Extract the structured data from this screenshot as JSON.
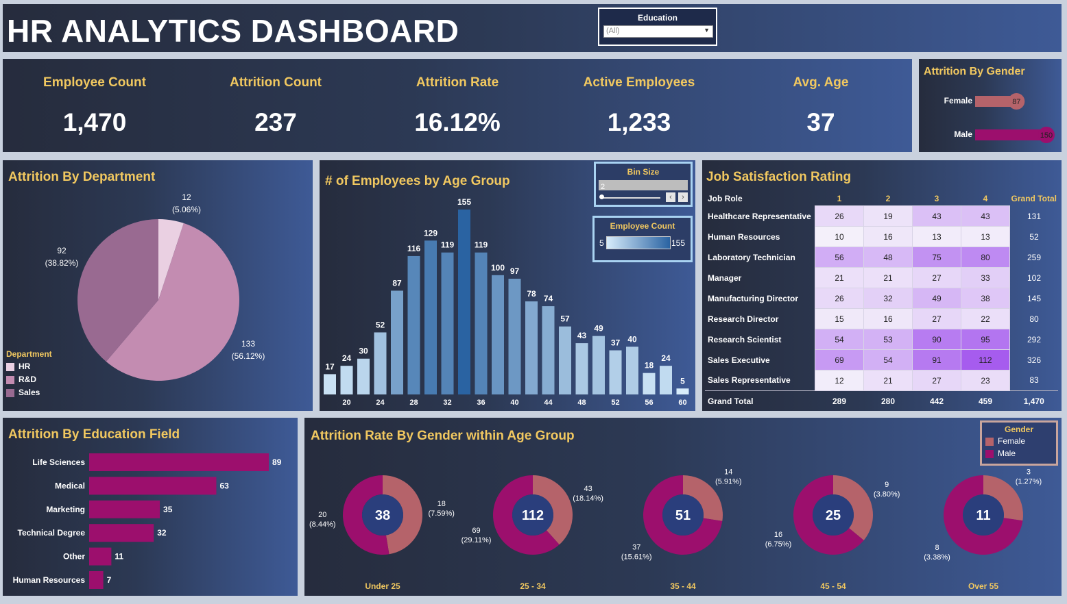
{
  "dashboard_title": "HR ANALYTICS DASHBOARD",
  "filter": {
    "label": "Education",
    "value": "(All)"
  },
  "kpis": [
    {
      "label": "Employee Count",
      "value": "1,470"
    },
    {
      "label": "Attrition Count",
      "value": "237"
    },
    {
      "label": "Attrition Rate",
      "value": "16.12%"
    },
    {
      "label": "Active Employees",
      "value": "1,233"
    },
    {
      "label": "Avg. Age",
      "value": "37"
    }
  ],
  "colors": {
    "accent": "#f1c860",
    "female": "#b5636a",
    "male": "#9c0f6d",
    "hr": "#ead0e2",
    "rd": "#c38cb1",
    "sales": "#996a91",
    "donut_center": "#2a3e7c"
  },
  "legend_bin": {
    "title": "Bin Size",
    "value": "2"
  },
  "legend_emp": {
    "title": "Employee Count",
    "min": "5",
    "max": "155"
  },
  "gender_legend": {
    "title": "Gender",
    "female": "Female",
    "male": "Male"
  },
  "dept_legend": {
    "title": "Department",
    "hr": "HR",
    "rd": "R&D",
    "sales": "Sales"
  },
  "chart_data": [
    {
      "type": "bar",
      "id": "gender_attrition",
      "title": "Attrition By Gender",
      "categories": [
        "Female",
        "Male"
      ],
      "values": [
        87,
        150
      ],
      "xlim": [
        0,
        150
      ]
    },
    {
      "type": "pie",
      "id": "dept",
      "title": "Attrition By Department",
      "labels": [
        "HR",
        "R&D",
        "Sales"
      ],
      "values": [
        12,
        133,
        92
      ],
      "pct_labels": [
        "(5.06%)",
        "(56.12%)",
        "(38.82%)"
      ]
    },
    {
      "type": "bar",
      "id": "age",
      "title": "# of Employees by Age Group",
      "categories": [
        18,
        20,
        22,
        24,
        26,
        28,
        30,
        32,
        34,
        36,
        38,
        40,
        42,
        44,
        46,
        48,
        50,
        52,
        54,
        56,
        58,
        60
      ],
      "values": [
        17,
        24,
        30,
        52,
        87,
        116,
        129,
        119,
        155,
        119,
        100,
        97,
        78,
        74,
        57,
        43,
        49,
        37,
        40,
        18,
        24,
        5
      ],
      "tick_labels": [
        "20",
        "24",
        "28",
        "32",
        "36",
        "40",
        "44",
        "48",
        "52",
        "56",
        "60"
      ],
      "ylim": [
        0,
        155
      ]
    },
    {
      "type": "table",
      "id": "job_satisfaction",
      "title": "Job Satisfaction Rating",
      "columns": [
        "Job Role",
        "1",
        "2",
        "3",
        "4",
        "Grand Total"
      ],
      "rows": [
        {
          "role": "Healthcare Representative",
          "values": [
            26,
            19,
            43,
            43
          ],
          "total": "131"
        },
        {
          "role": "Human Resources",
          "values": [
            10,
            16,
            13,
            13
          ],
          "total": "52"
        },
        {
          "role": "Laboratory Technician",
          "values": [
            56,
            48,
            75,
            80
          ],
          "total": "259"
        },
        {
          "role": "Manager",
          "values": [
            21,
            21,
            27,
            33
          ],
          "total": "102"
        },
        {
          "role": "Manufacturing Director",
          "values": [
            26,
            32,
            49,
            38
          ],
          "total": "145"
        },
        {
          "role": "Research Director",
          "values": [
            15,
            16,
            27,
            22
          ],
          "total": "80"
        },
        {
          "role": "Research Scientist",
          "values": [
            54,
            53,
            90,
            95
          ],
          "total": "292"
        },
        {
          "role": "Sales Executive",
          "values": [
            69,
            54,
            91,
            112
          ],
          "total": "326"
        },
        {
          "role": "Sales Representative",
          "values": [
            12,
            21,
            27,
            23
          ],
          "total": "83"
        }
      ],
      "grand_total": {
        "label": "Grand Total",
        "values": [
          "289",
          "280",
          "442",
          "459"
        ],
        "total": "1,470"
      }
    },
    {
      "type": "bar",
      "id": "edu",
      "title": "Attrition By Education Field",
      "categories": [
        "Life Sciences",
        "Medical",
        "Marketing",
        "Technical Degree",
        "Other",
        "Human Resources"
      ],
      "values": [
        89,
        63,
        35,
        32,
        11,
        7
      ],
      "xlim": [
        0,
        89
      ]
    },
    {
      "type": "pie",
      "id": "age_gender",
      "title": "Attrition Rate By Gender within Age Group",
      "groups": [
        {
          "label": "Under 25",
          "total": 38,
          "female": 18,
          "female_pct": "(7.59%)",
          "male": 20,
          "male_pct": "(8.44%)"
        },
        {
          "label": "25 - 34",
          "total": 112,
          "female": 43,
          "female_pct": "(18.14%)",
          "male": 69,
          "male_pct": "(29.11%)"
        },
        {
          "label": "35 - 44",
          "total": 51,
          "female": 14,
          "female_pct": "(5.91%)",
          "male": 37,
          "male_pct": "(15.61%)"
        },
        {
          "label": "45 - 54",
          "total": 25,
          "female": 9,
          "female_pct": "(3.80%)",
          "male": 16,
          "male_pct": "(6.75%)"
        },
        {
          "label": "Over 55",
          "total": 11,
          "female": 3,
          "female_pct": "(1.27%)",
          "male": 8,
          "male_pct": "(3.38%)"
        }
      ]
    }
  ]
}
